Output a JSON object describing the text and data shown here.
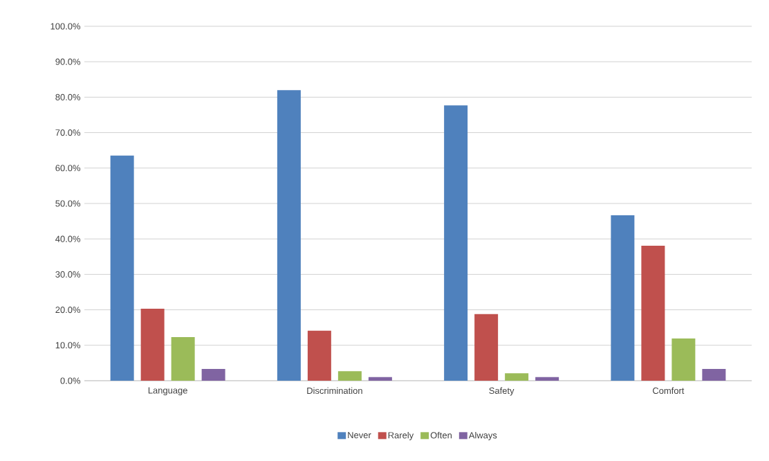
{
  "chart_data": {
    "type": "bar",
    "categories": [
      "Language",
      "Discrimination",
      "Safety",
      "Comfort"
    ],
    "series": [
      {
        "name": "Never",
        "color": "#4f81bd",
        "values": [
          63.5,
          82.0,
          77.7,
          46.7
        ]
      },
      {
        "name": "Rarely",
        "color": "#c0504d",
        "values": [
          20.3,
          14.1,
          18.8,
          38.1
        ]
      },
      {
        "name": "Often",
        "color": "#9bbb59",
        "values": [
          12.3,
          2.7,
          2.1,
          11.9
        ]
      },
      {
        "name": "Always",
        "color": "#8064a2",
        "values": [
          3.3,
          1.0,
          1.0,
          3.3
        ]
      }
    ],
    "ylim": [
      0,
      100
    ],
    "yticks": [
      {
        "value": 0,
        "label": "0.0%"
      },
      {
        "value": 10,
        "label": "10.0%"
      },
      {
        "value": 20,
        "label": "20.0%"
      },
      {
        "value": 30,
        "label": "30.0%"
      },
      {
        "value": 40,
        "label": "40.0%"
      },
      {
        "value": 50,
        "label": "50.0%"
      },
      {
        "value": 60,
        "label": "60.0%"
      },
      {
        "value": 70,
        "label": "70.0%"
      },
      {
        "value": 80,
        "label": "80.0%"
      },
      {
        "value": 90,
        "label": "90.0%"
      },
      {
        "value": 100,
        "label": "100.0%"
      }
    ],
    "grid": "y",
    "legend": "bottom"
  }
}
